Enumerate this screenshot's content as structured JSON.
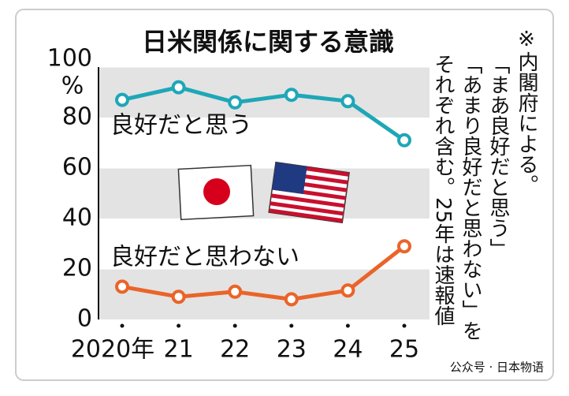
{
  "chart_data": {
    "type": "line",
    "title": "日米関係に関する意識",
    "y_unit": "%",
    "categories": [
      "2020年",
      "21",
      "22",
      "23",
      "24",
      "25"
    ],
    "series": [
      {
        "name": "良好だと思う",
        "color": "#1ea7b7",
        "values": [
          87,
          92,
          86,
          89,
          86.5,
          71
        ]
      },
      {
        "name": "良好だと思わない",
        "color": "#ea6429",
        "values": [
          13,
          9,
          11,
          8,
          11.5,
          29
        ]
      }
    ],
    "ylim": [
      0,
      100
    ],
    "yticks": [
      0,
      20,
      40,
      60,
      80,
      100
    ],
    "note": [
      "※内閣府による。",
      "「まあ良好だと思う」",
      "「あまり良好だと思わない」を",
      "それぞれ含む。25年は速報値"
    ],
    "watermark": "公众号 · 日本物语"
  }
}
